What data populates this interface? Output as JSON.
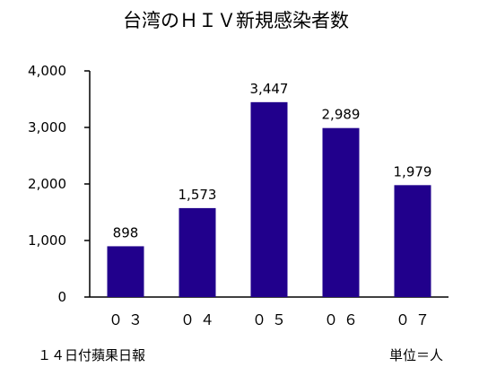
{
  "chart_data": {
    "type": "bar",
    "title": "台湾のＨＩＶ新規感染者数",
    "categories": [
      "０３",
      "０４",
      "０５",
      "０６",
      "０７"
    ],
    "values": [
      898,
      1573,
      3447,
      2989,
      1979
    ],
    "value_labels": [
      "898",
      "1,573",
      "3,447",
      "2,989",
      "1,979"
    ],
    "ylim": [
      0,
      4000
    ],
    "yticks": [
      0,
      1000,
      2000,
      3000,
      4000
    ],
    "ytick_labels": [
      "0",
      "1,000",
      "2,000",
      "3,000",
      "4,000"
    ],
    "grid": false,
    "legend": "none",
    "bar_color": "#21008c",
    "axis_color": "#000000"
  },
  "footer": {
    "source": "１４日付蘋果日報",
    "unit": "単位＝人"
  }
}
